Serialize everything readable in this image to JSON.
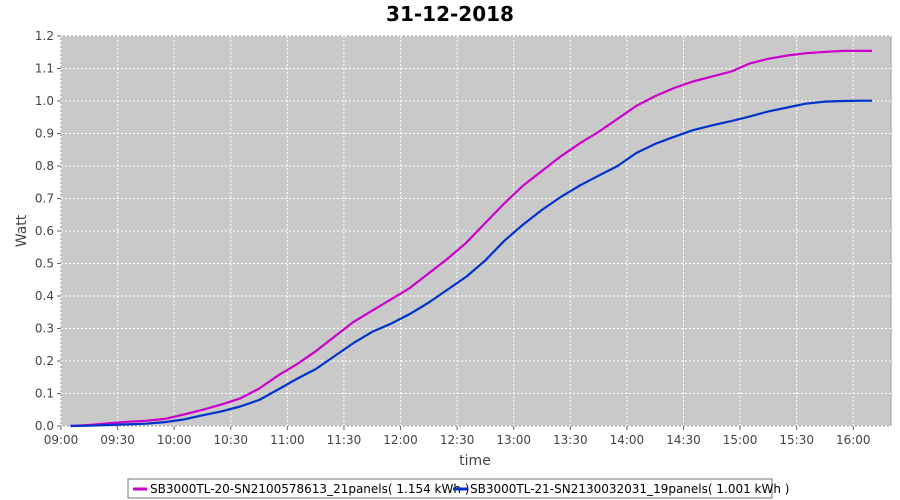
{
  "chart_data": {
    "type": "line",
    "title": "31-12-2018",
    "xlabel": "time",
    "ylabel": "Watt",
    "xlim": [
      "09:00",
      "16:20"
    ],
    "ylim": [
      0.0,
      1.2
    ],
    "x_ticks": [
      "09:00",
      "09:30",
      "10:00",
      "10:30",
      "11:00",
      "11:30",
      "12:00",
      "12:30",
      "13:00",
      "13:30",
      "14:00",
      "14:30",
      "15:00",
      "15:30",
      "16:00"
    ],
    "y_ticks": [
      "0.0",
      "0.1",
      "0.2",
      "0.3",
      "0.4",
      "0.5",
      "0.6",
      "0.7",
      "0.8",
      "0.9",
      "1.0",
      "1.1",
      "1.2"
    ],
    "grid": true,
    "legend_position": "bottom",
    "x": [
      "09:05",
      "09:15",
      "09:25",
      "09:35",
      "09:45",
      "09:55",
      "10:05",
      "10:15",
      "10:25",
      "10:35",
      "10:45",
      "10:55",
      "11:05",
      "11:15",
      "11:25",
      "11:35",
      "11:45",
      "11:55",
      "12:05",
      "12:15",
      "12:25",
      "12:35",
      "12:45",
      "12:55",
      "13:05",
      "13:15",
      "13:25",
      "13:35",
      "13:45",
      "13:55",
      "14:05",
      "14:15",
      "14:25",
      "14:35",
      "14:45",
      "14:55",
      "15:05",
      "15:15",
      "15:25",
      "15:35",
      "15:45",
      "15:55",
      "16:05",
      "16:10"
    ],
    "series": [
      {
        "name": "SB3000TL-20-SN2100578613_21panels( 1.154 kWh )",
        "color": "#cc00cc",
        "values": [
          0.0,
          0.003,
          0.008,
          0.013,
          0.016,
          0.022,
          0.035,
          0.05,
          0.066,
          0.085,
          0.115,
          0.155,
          0.19,
          0.23,
          0.275,
          0.32,
          0.355,
          0.39,
          0.425,
          0.47,
          0.515,
          0.565,
          0.625,
          0.685,
          0.74,
          0.785,
          0.83,
          0.87,
          0.905,
          0.945,
          0.985,
          1.015,
          1.04,
          1.06,
          1.075,
          1.09,
          1.115,
          1.13,
          1.14,
          1.147,
          1.151,
          1.154,
          1.154,
          1.154
        ]
      },
      {
        "name": "SB3000TL-21-SN2130032031_19panels( 1.001 kWh )",
        "color": "#0033cc",
        "values": [
          0.0,
          0.001,
          0.003,
          0.005,
          0.007,
          0.012,
          0.02,
          0.033,
          0.045,
          0.06,
          0.08,
          0.112,
          0.145,
          0.175,
          0.215,
          0.255,
          0.29,
          0.315,
          0.345,
          0.38,
          0.42,
          0.46,
          0.51,
          0.57,
          0.62,
          0.665,
          0.705,
          0.74,
          0.77,
          0.8,
          0.84,
          0.868,
          0.89,
          0.91,
          0.925,
          0.938,
          0.952,
          0.968,
          0.98,
          0.992,
          0.998,
          1.0,
          1.001,
          1.001
        ]
      }
    ]
  }
}
